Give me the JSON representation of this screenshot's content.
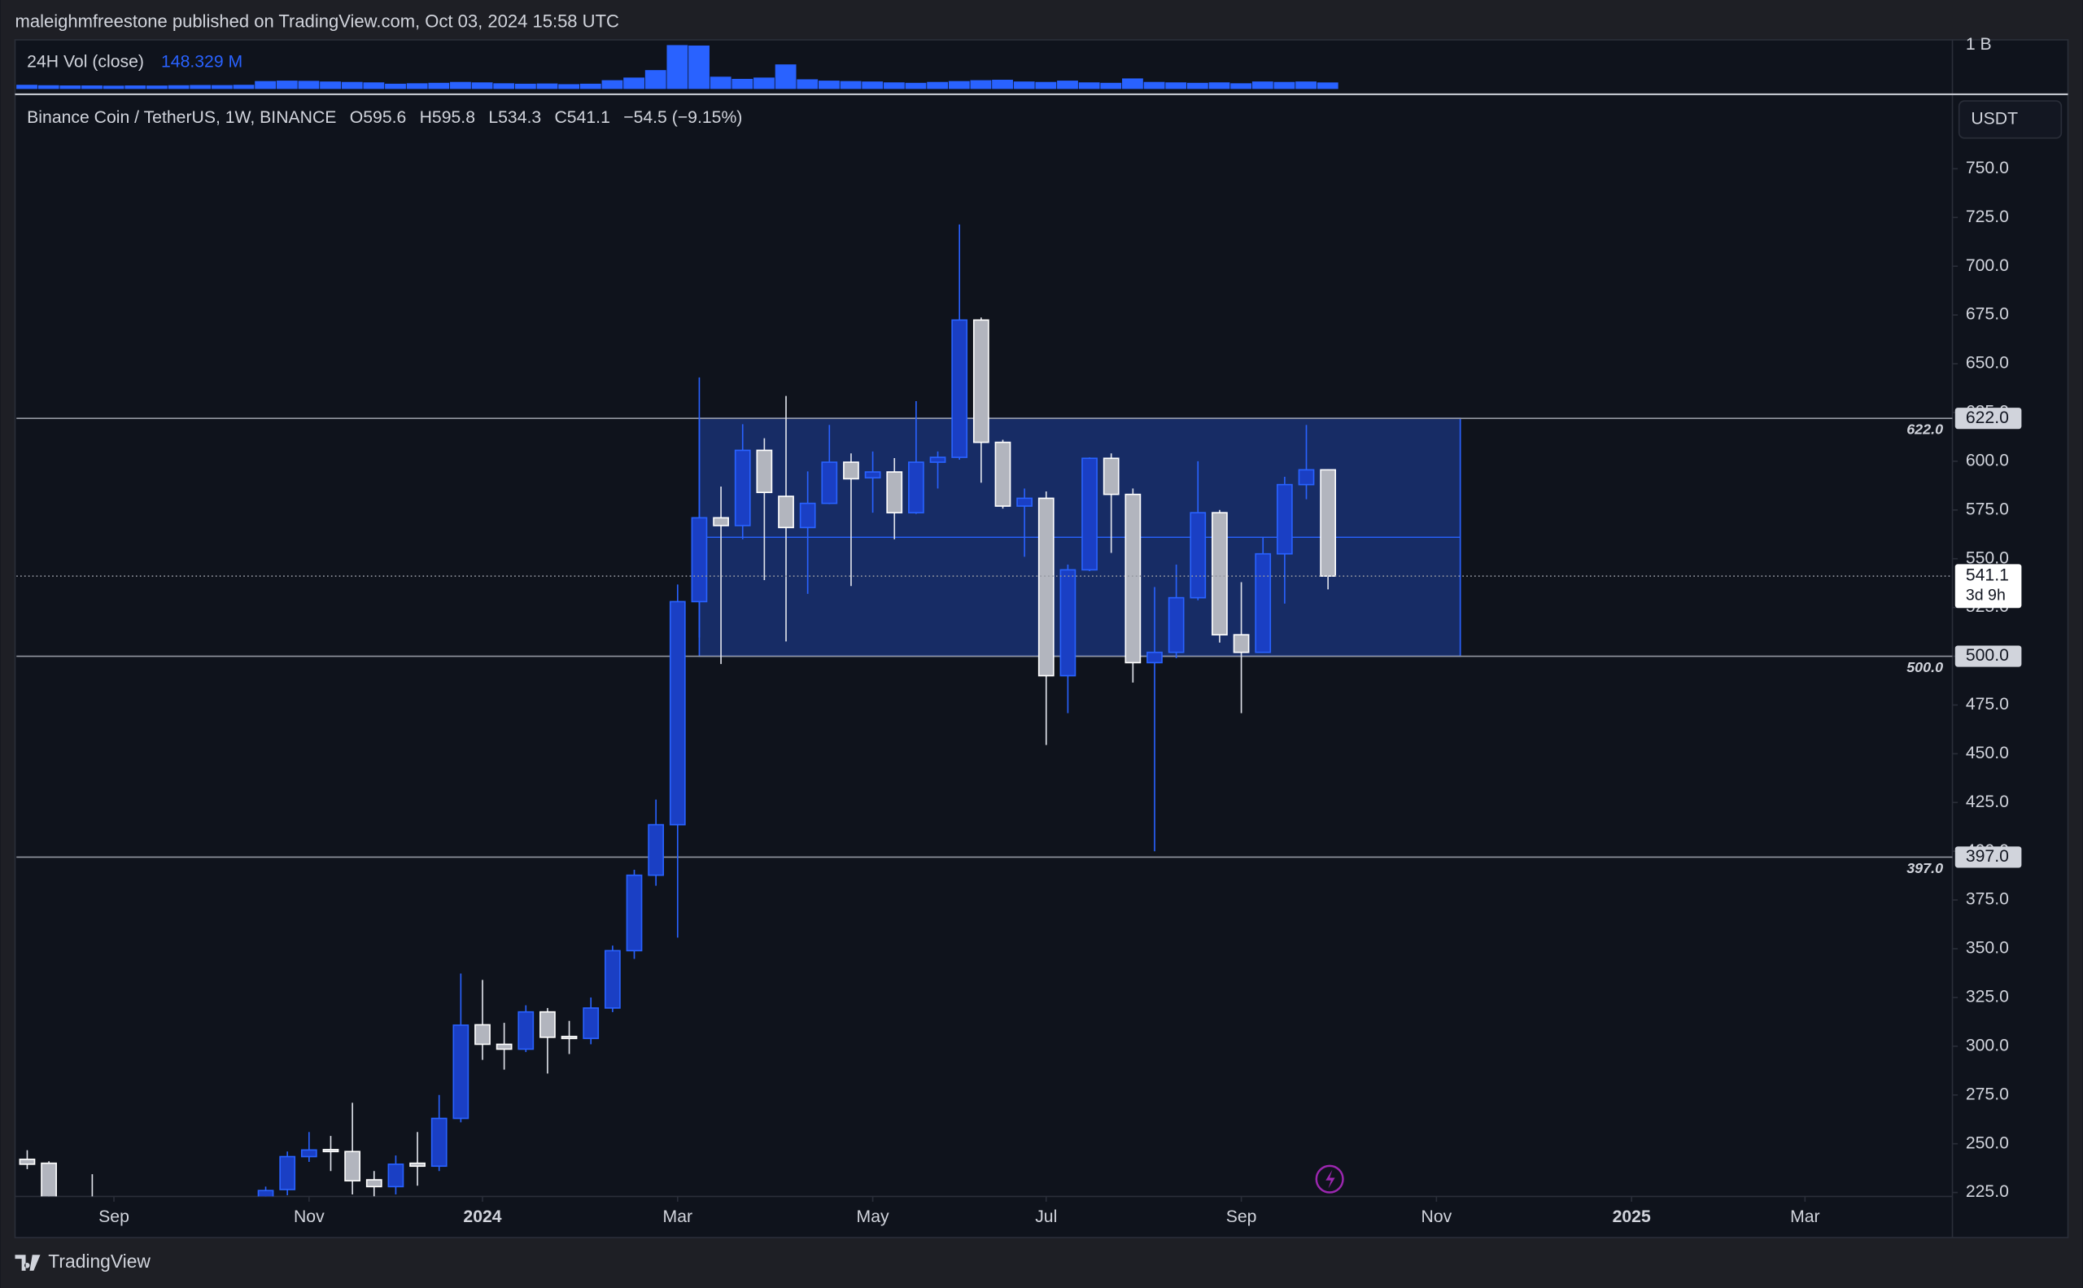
{
  "chart_data": {
    "type": "candlestick",
    "header": "maleighmfreestone published on TradingView.com, Oct 03, 2024 15:58 UTC",
    "volume_title": "24H Vol (close)",
    "volume_readout": "148.329 M",
    "legend": {
      "symbol": "Binance Coin / TetherUS, 1W, BINANCE",
      "letters": [
        "O",
        "H",
        "L",
        "C"
      ],
      "change": "−54.5 (−9.15%)"
    },
    "currency": "USDT",
    "countdown": "3d 9h",
    "brand": "TradingView",
    "categories": [
      null,
      null,
      null,
      null,
      null,
      null,
      null,
      null,
      null,
      null,
      null,
      null,
      null,
      null,
      null,
      null,
      null,
      null,
      null,
      null,
      null,
      null,
      null,
      null,
      null,
      null,
      null,
      null,
      null,
      null,
      null,
      null,
      null,
      null,
      null,
      null,
      null,
      null,
      null,
      null,
      null,
      null,
      null,
      null,
      null,
      null,
      null,
      null,
      null,
      null,
      null,
      null,
      null,
      null,
      null,
      null,
      null,
      null,
      null,
      null,
      null
    ],
    "open": [
      242,
      240,
      null,
      215,
      null,
      null,
      null,
      null,
      null,
      null,
      null,
      222,
      226.5,
      243.4,
      247,
      246,
      231.5,
      228,
      240,
      238.5,
      263,
      311,
      301,
      298.5,
      317.6,
      305,
      304,
      319.6,
      349,
      387.7,
      413.6,
      528,
      571,
      567,
      605.6,
      582,
      566,
      578.4,
      599.5,
      591.5,
      594.5,
      573.6,
      599.5,
      602,
      672.4,
      609.7,
      577,
      581,
      490,
      544.3,
      601.5,
      583,
      496.7,
      502,
      530,
      573.6,
      511,
      502,
      552.5,
      588,
      595.6
    ],
    "high": [
      246.7,
      241,
      null,
      234.4,
      null,
      null,
      null,
      null,
      null,
      null,
      null,
      228,
      246,
      256,
      254,
      271,
      236,
      244,
      256,
      275,
      337.3,
      334,
      312,
      321,
      319.6,
      313,
      325,
      351.6,
      390.5,
      426.5,
      536.8,
      643,
      587,
      619,
      611.8,
      633.5,
      594.8,
      618.6,
      604,
      605,
      601.6,
      630.8,
      605,
      721.4,
      673.7,
      611,
      586,
      584.5,
      547,
      602,
      604,
      586,
      535.5,
      547,
      600,
      575,
      538,
      561,
      592,
      618.6,
      595.8
    ],
    "low": [
      237,
      212,
      null,
      207,
      null,
      null,
      null,
      null,
      null,
      null,
      null,
      215,
      223.6,
      240.7,
      236,
      224,
      223,
      224,
      228.5,
      236,
      261,
      293,
      288,
      297,
      286,
      296,
      301,
      317.5,
      344.8,
      382.3,
      355.7,
      509.6,
      496,
      560,
      539,
      507.6,
      532,
      578,
      536,
      573.6,
      560,
      573,
      586,
      600.8,
      589,
      575.7,
      551,
      454.5,
      470.8,
      543.6,
      553,
      486.5,
      400,
      499,
      528.7,
      507,
      470.8,
      502,
      527,
      580.5,
      534.3
    ],
    "close": [
      239.5,
      218,
      null,
      212,
      null,
      null,
      null,
      null,
      null,
      null,
      null,
      226,
      243.4,
      246.8,
      246,
      231,
      228,
      239.5,
      238.5,
      263,
      310.8,
      301,
      298.5,
      317.6,
      304.6,
      304,
      319.6,
      349,
      387.7,
      413.6,
      528,
      571,
      567,
      605.6,
      584,
      566,
      578.4,
      599.5,
      591,
      594.5,
      573.6,
      599.5,
      602,
      672.4,
      609.7,
      577,
      581,
      490,
      544.3,
      601.5,
      583,
      496.7,
      502,
      530,
      573.6,
      511,
      502,
      552.5,
      588,
      595.6,
      541.1
    ],
    "up_color": "#2962ff",
    "down_color": "#b2b5be",
    "volume": [
      95000000,
      85000000,
      80000000,
      80000000,
      75000000,
      80000000,
      78000000,
      85000000,
      90000000,
      88000000,
      95000000,
      180000000,
      190000000,
      185000000,
      170000000,
      160000000,
      150000000,
      120000000,
      130000000,
      140000000,
      160000000,
      150000000,
      130000000,
      120000000,
      125000000,
      110000000,
      120000000,
      200000000,
      260000000,
      430000000,
      1000000000,
      990000000,
      280000000,
      230000000,
      260000000,
      560000000,
      220000000,
      190000000,
      180000000,
      170000000,
      150000000,
      140000000,
      160000000,
      180000000,
      200000000,
      210000000,
      170000000,
      160000000,
      190000000,
      150000000,
      140000000,
      240000000,
      160000000,
      150000000,
      140000000,
      150000000,
      130000000,
      170000000,
      160000000,
      170000000,
      148329000
    ],
    "volume_color": "#2962ff",
    "vol_ylim": [
      0,
      1120000000
    ],
    "vol_yticks": [
      {
        "value": 1000000000,
        "label": "1 B"
      }
    ],
    "xlim": [
      -0.5,
      88.8
    ],
    "xticks": [
      {
        "value": 4,
        "label": "Sep"
      },
      {
        "value": 13,
        "label": "Nov"
      },
      {
        "value": 21,
        "label": "2024"
      },
      {
        "value": 30,
        "label": "Mar"
      },
      {
        "value": 39,
        "label": "May"
      },
      {
        "value": 47,
        "label": "Jul"
      },
      {
        "value": 56,
        "label": "Sep"
      },
      {
        "value": 65,
        "label": "Nov"
      },
      {
        "value": 74,
        "label": "2025"
      },
      {
        "value": 82,
        "label": "Mar"
      }
    ],
    "ylim": [
      223,
      787.5
    ],
    "yticks": [
      {
        "value": 225,
        "label": "225.0"
      },
      {
        "value": 250,
        "label": "250.0"
      },
      {
        "value": 275,
        "label": "275.0"
      },
      {
        "value": 300,
        "label": "300.0"
      },
      {
        "value": 325,
        "label": "325.0"
      },
      {
        "value": 350,
        "label": "350.0"
      },
      {
        "value": 375,
        "label": "375.0"
      },
      {
        "value": 400,
        "label": "400.0"
      },
      {
        "value": 425,
        "label": "425.0"
      },
      {
        "value": 450,
        "label": "450.0"
      },
      {
        "value": 475,
        "label": "475.0"
      },
      {
        "value": 500,
        "label": "500.0"
      },
      {
        "value": 525,
        "label": "525.0"
      },
      {
        "value": 550,
        "label": "550.0"
      },
      {
        "value": 575,
        "label": "575.0"
      },
      {
        "value": 600,
        "label": "600.0"
      },
      {
        "value": 625,
        "label": "625.0"
      },
      {
        "value": 650,
        "label": "650.0"
      },
      {
        "value": 675,
        "label": "675.0"
      },
      {
        "value": 700,
        "label": "700.0"
      },
      {
        "value": 725,
        "label": "725.0"
      },
      {
        "value": 750,
        "label": "750.0"
      }
    ],
    "levels": [
      {
        "value": 622,
        "label": "622.0"
      },
      {
        "value": 500,
        "label": "500.0"
      },
      {
        "value": 397,
        "label": "397.0"
      }
    ],
    "box": {
      "top": 622,
      "bottom": 500,
      "mid": 561
    }
  }
}
